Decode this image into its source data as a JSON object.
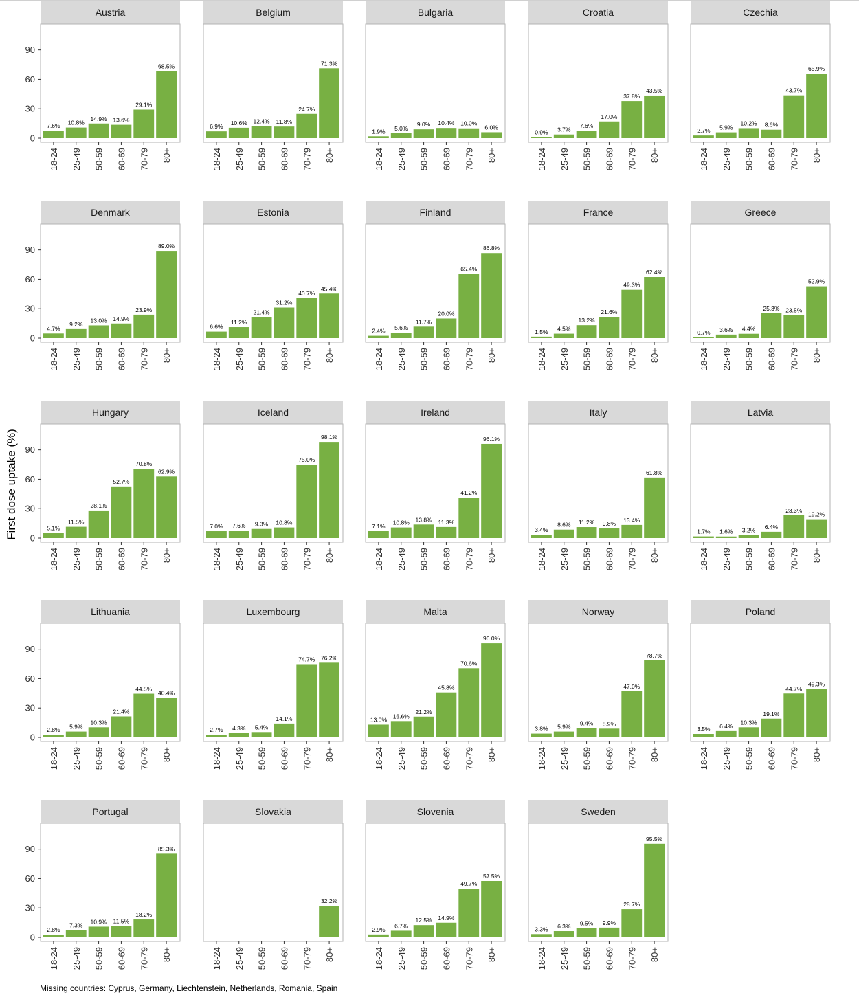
{
  "figure": {
    "y_axis_label": "First dose uptake (%)",
    "footnote": "Missing countries: Cyprus, Germany, Liechtenstein, Netherlands, Romania, Spain",
    "bar_color": "#78b043",
    "strip_color": "#d9d9d9",
    "border_color": "#b3b3b3"
  },
  "chart_data": {
    "type": "bar",
    "facet": true,
    "categories": [
      "18-24",
      "25-49",
      "50-59",
      "60-69",
      "70-79",
      "80+"
    ],
    "ylim": [
      0,
      115
    ],
    "y_ticks": [
      0,
      30,
      60,
      90
    ],
    "grid": false,
    "legend": "none",
    "panels": [
      {
        "country": "Austria",
        "values": [
          7.6,
          10.8,
          14.9,
          13.6,
          29.1,
          68.5
        ],
        "labels": [
          "7.6%",
          "10.8%",
          "14.9%",
          "13.6%",
          "29.1%",
          "68.5%"
        ]
      },
      {
        "country": "Belgium",
        "values": [
          6.9,
          10.6,
          12.4,
          11.8,
          24.7,
          71.3
        ],
        "labels": [
          "6.9%",
          "10.6%",
          "12.4%",
          "11.8%",
          "24.7%",
          "71.3%"
        ]
      },
      {
        "country": "Bulgaria",
        "values": [
          1.9,
          5.0,
          9.0,
          10.4,
          10.0,
          6.0
        ],
        "labels": [
          "1.9%",
          "5.0%",
          "9.0%",
          "10.4%",
          "10.0%",
          "6.0%"
        ]
      },
      {
        "country": "Croatia",
        "values": [
          0.9,
          3.7,
          7.6,
          17.0,
          37.8,
          43.5
        ],
        "labels": [
          "0.9%",
          "3.7%",
          "7.6%",
          "17.0%",
          "37.8%",
          "43.5%"
        ]
      },
      {
        "country": "Czechia",
        "values": [
          2.7,
          5.9,
          10.2,
          8.6,
          43.7,
          65.9
        ],
        "labels": [
          "2.7%",
          "5.9%",
          "10.2%",
          "8.6%",
          "43.7%",
          "65.9%"
        ]
      },
      {
        "country": "Denmark",
        "values": [
          4.7,
          9.2,
          13.0,
          14.9,
          23.9,
          89.0
        ],
        "labels": [
          "4.7%",
          "9.2%",
          "13.0%",
          "14.9%",
          "23.9%",
          "89.0%"
        ]
      },
      {
        "country": "Estonia",
        "values": [
          6.6,
          11.2,
          21.4,
          31.2,
          40.7,
          45.4
        ],
        "labels": [
          "6.6%",
          "11.2%",
          "21.4%",
          "31.2%",
          "40.7%",
          "45.4%"
        ]
      },
      {
        "country": "Finland",
        "values": [
          2.4,
          5.6,
          11.7,
          20.0,
          65.4,
          86.8
        ],
        "labels": [
          "2.4%",
          "5.6%",
          "11.7%",
          "20.0%",
          "65.4%",
          "86.8%"
        ]
      },
      {
        "country": "France",
        "values": [
          1.5,
          4.5,
          13.2,
          21.6,
          49.3,
          62.4
        ],
        "labels": [
          "1.5%",
          "4.5%",
          "13.2%",
          "21.6%",
          "49.3%",
          "62.4%"
        ]
      },
      {
        "country": "Greece",
        "values": [
          0.7,
          3.6,
          4.4,
          25.3,
          23.5,
          52.9
        ],
        "labels": [
          "0.7%",
          "3.6%",
          "4.4%",
          "25.3%",
          "23.5%",
          "52.9%"
        ]
      },
      {
        "country": "Hungary",
        "values": [
          5.1,
          11.5,
          28.1,
          52.7,
          70.8,
          62.9
        ],
        "labels": [
          "5.1%",
          "11.5%",
          "28.1%",
          "52.7%",
          "70.8%",
          "62.9%"
        ]
      },
      {
        "country": "Iceland",
        "values": [
          7.0,
          7.6,
          9.3,
          10.8,
          75.0,
          98.1
        ],
        "labels": [
          "7.0%",
          "7.6%",
          "9.3%",
          "10.8%",
          "75.0%",
          "98.1%"
        ]
      },
      {
        "country": "Ireland",
        "values": [
          7.1,
          10.8,
          13.8,
          11.3,
          41.2,
          96.1
        ],
        "labels": [
          "7.1%",
          "10.8%",
          "13.8%",
          "11.3%",
          "41.2%",
          "96.1%"
        ]
      },
      {
        "country": "Italy",
        "values": [
          3.4,
          8.6,
          11.2,
          9.8,
          13.4,
          61.8
        ],
        "labels": [
          "3.4%",
          "8.6%",
          "11.2%",
          "9.8%",
          "13.4%",
          "61.8%"
        ]
      },
      {
        "country": "Latvia",
        "values": [
          1.7,
          1.6,
          3.2,
          6.4,
          23.3,
          19.2
        ],
        "labels": [
          "1.7%",
          "1.6%",
          "3.2%",
          "6.4%",
          "23.3%",
          "19.2%"
        ]
      },
      {
        "country": "Lithuania",
        "values": [
          2.8,
          5.9,
          10.3,
          21.4,
          44.5,
          40.4
        ],
        "labels": [
          "2.8%",
          "5.9%",
          "10.3%",
          "21.4%",
          "44.5%",
          "40.4%"
        ]
      },
      {
        "country": "Luxembourg",
        "values": [
          2.7,
          4.3,
          5.4,
          14.1,
          74.7,
          76.2
        ],
        "labels": [
          "2.7%",
          "4.3%",
          "5.4%",
          "14.1%",
          "74.7%",
          "76.2%"
        ]
      },
      {
        "country": "Malta",
        "values": [
          13.0,
          16.6,
          21.2,
          45.8,
          70.6,
          96.0
        ],
        "labels": [
          "13.0%",
          "16.6%",
          "21.2%",
          "45.8%",
          "70.6%",
          "96.0%"
        ]
      },
      {
        "country": "Norway",
        "values": [
          3.8,
          5.9,
          9.4,
          8.9,
          47.0,
          78.7
        ],
        "labels": [
          "3.8%",
          "5.9%",
          "9.4%",
          "8.9%",
          "47.0%",
          "78.7%"
        ]
      },
      {
        "country": "Poland",
        "values": [
          3.5,
          6.4,
          10.3,
          19.1,
          44.7,
          49.3
        ],
        "labels": [
          "3.5%",
          "6.4%",
          "10.3%",
          "19.1%",
          "44.7%",
          "49.3%"
        ]
      },
      {
        "country": "Portugal",
        "values": [
          2.8,
          7.3,
          10.9,
          11.5,
          18.2,
          85.3
        ],
        "labels": [
          "2.8%",
          "7.3%",
          "10.9%",
          "11.5%",
          "18.2%",
          "85.3%"
        ]
      },
      {
        "country": "Slovakia",
        "values": [
          null,
          null,
          null,
          null,
          null,
          32.2
        ],
        "labels": [
          "",
          "",
          "",
          "",
          "",
          "32.2%"
        ]
      },
      {
        "country": "Slovenia",
        "values": [
          2.9,
          6.7,
          12.5,
          14.9,
          49.7,
          57.5
        ],
        "labels": [
          "2.9%",
          "6.7%",
          "12.5%",
          "14.9%",
          "49.7%",
          "57.5%"
        ]
      },
      {
        "country": "Sweden",
        "values": [
          3.3,
          6.3,
          9.5,
          9.9,
          28.7,
          95.5
        ],
        "labels": [
          "3.3%",
          "6.3%",
          "9.5%",
          "9.9%",
          "28.7%",
          "95.5%"
        ]
      }
    ]
  }
}
